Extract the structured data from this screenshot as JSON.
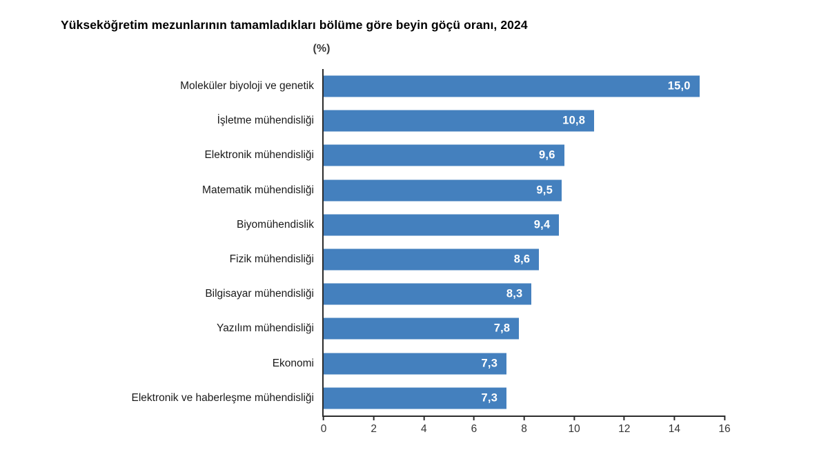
{
  "chart_data": {
    "type": "bar",
    "orientation": "horizontal",
    "title": "Yükseköğretim mezunlarının tamamladıkları bölüme göre beyin göçü oranı, 2024",
    "unit_label": "(%)",
    "categories": [
      "Moleküler biyoloji ve genetik",
      "İşletme mühendisliği",
      "Elektronik mühendisliği",
      "Matematik mühendisliği",
      "Biyomühendislik",
      "Fizik mühendisliği",
      "Bilgisayar mühendisliği",
      "Yazılım mühendisliği",
      "Ekonomi",
      "Elektronik ve haberleşme mühendisliği"
    ],
    "values": [
      15.0,
      10.8,
      9.6,
      9.5,
      9.4,
      8.6,
      8.3,
      7.8,
      7.3,
      7.3
    ],
    "values_display": [
      "15,0",
      "10,8",
      "9,6",
      "9,5",
      "9,4",
      "8,6",
      "8,3",
      "7,8",
      "7,3",
      "7,3"
    ],
    "xlabel": "",
    "ylabel": "",
    "xlim": [
      0,
      16
    ],
    "xticks": [
      0,
      2,
      4,
      6,
      8,
      10,
      12,
      14,
      16
    ],
    "xtick_labels": [
      "0",
      "2",
      "4",
      "6",
      "8",
      "10",
      "12",
      "14",
      "16"
    ],
    "grid": false,
    "legend": false,
    "colors": {
      "bar": "#4480BE",
      "value_label": "#FFFFFF",
      "axis": "#2B2B2B",
      "tick_label": "#333333",
      "category_label": "#1A1A1A",
      "title": "#000000"
    }
  }
}
